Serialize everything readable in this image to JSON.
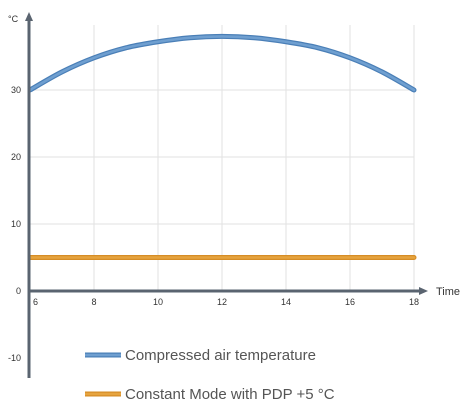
{
  "chart_data": {
    "type": "line",
    "xlabel": "Time",
    "ylabel": "°C",
    "xlim": [
      6,
      18
    ],
    "ylim": [
      -10,
      40
    ],
    "x_ticks": [
      6,
      8,
      10,
      12,
      14,
      16,
      18
    ],
    "y_ticks": [
      -10,
      0,
      10,
      20,
      30
    ],
    "grid": true,
    "legend_position": "bottom-left",
    "series": [
      {
        "name": "Compressed air temperature",
        "color": "#6f9fd0",
        "x": [
          6,
          7,
          8,
          9,
          10,
          11,
          12,
          13,
          14,
          15,
          16,
          17,
          18
        ],
        "y": [
          30,
          32.7,
          34.8,
          36.3,
          37.2,
          37.8,
          38,
          37.8,
          37.2,
          36.3,
          34.8,
          32.7,
          30
        ]
      },
      {
        "name": "Constant Mode with PDP +5 °C",
        "color": "#e6a43f",
        "x": [
          6,
          18
        ],
        "y": [
          5,
          5
        ]
      }
    ]
  }
}
